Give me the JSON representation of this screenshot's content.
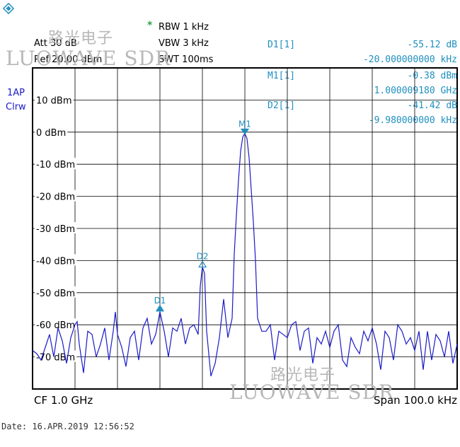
{
  "header": {
    "star": "*",
    "att": "Att 30 dB",
    "ref": "Ref 20.00 dBm",
    "rbw": "RBW 1 kHz",
    "vbw": "VBW 3 kHz",
    "swt": "SWT 100ms"
  },
  "trace_mode": {
    "line1": "1AP",
    "line2": "Clrw"
  },
  "markers": {
    "d1": {
      "label": "D1[1]",
      "value": "-55.12 dB",
      "offset": "-20.000000000 kHz"
    },
    "m1": {
      "label": "M1[1]",
      "value": "-0.38 dBm",
      "freq": "1.000009180 GHz"
    },
    "d2": {
      "label": "D2[1]",
      "value": "-41.42 dB",
      "offset": "-9.980000000 kHz"
    }
  },
  "footer": {
    "cf": "CF 1.0 GHz",
    "span": "Span 100.0 kHz",
    "date": "Date: 16.APR.2019  12:56:52"
  },
  "watermark": {
    "cn": "路光电子",
    "en": "LUOWAVE SDR"
  },
  "colors": {
    "trace": "#1a1ac8",
    "marker": "#1f8fbf",
    "grid": "#000000"
  },
  "chart_data": {
    "type": "line",
    "x_unit": "kHz offset from CF",
    "xlim": [
      -50,
      50
    ],
    "ylim": [
      -80,
      20
    ],
    "y_ticks": [
      {
        "value": 10,
        "label": "10 dBm"
      },
      {
        "value": 0,
        "label": "0 dBm"
      },
      {
        "value": -10,
        "label": "-10 dBm"
      },
      {
        "value": -20,
        "label": "-20 dBm"
      },
      {
        "value": -30,
        "label": "-30 dBm"
      },
      {
        "value": -40,
        "label": "-40 dBm"
      },
      {
        "value": -50,
        "label": "-50 dBm"
      },
      {
        "value": -60,
        "label": "-60 dBm"
      },
      {
        "value": -70,
        "label": "-70 dBm"
      }
    ],
    "grid": true,
    "marker_points": [
      {
        "name": "M1",
        "x": 0,
        "y": -0.38
      },
      {
        "name": "D2",
        "x": -9.98,
        "y": -41.8
      },
      {
        "name": "D1",
        "x": -20,
        "y": -55.5
      }
    ],
    "series": [
      {
        "x": [
          -50,
          -49,
          -48,
          -47,
          -46,
          -45,
          -44,
          -43,
          -42,
          -41,
          -40,
          -39.5,
          -39,
          -38,
          -37,
          -36,
          -35,
          -34,
          -33,
          -32,
          -31,
          -30.5,
          -30,
          -29,
          -28,
          -27,
          -26,
          -25,
          -24,
          -23,
          -22,
          -21,
          -20,
          -19,
          -18,
          -17,
          -16,
          -15,
          -14,
          -13,
          -12,
          -11,
          -10.5,
          -10,
          -9.5,
          -9,
          -8,
          -7,
          -6,
          -5,
          -4,
          -3,
          -2.5,
          -2,
          -1.5,
          -1,
          -0.5,
          0,
          0.5,
          1,
          1.5,
          2,
          2.5,
          3,
          4,
          5,
          6,
          7,
          8,
          9,
          10,
          11,
          12,
          13,
          14,
          15,
          16,
          17,
          18,
          19,
          20,
          21,
          22,
          23,
          24,
          25,
          26,
          27,
          28,
          29,
          30,
          31,
          32,
          33,
          34,
          35,
          36,
          37,
          38,
          39,
          40,
          41,
          42,
          43,
          44,
          45,
          46,
          47,
          48,
          49,
          50
        ],
        "y": [
          -68,
          -69,
          -71,
          -67,
          -63,
          -70,
          -61,
          -65,
          -72,
          -64,
          -60,
          -59,
          -66,
          -75,
          -62,
          -63,
          -70,
          -66,
          -61,
          -71,
          -62,
          -56,
          -63,
          -67,
          -73,
          -64,
          -62,
          -71,
          -61,
          -58,
          -66,
          -63,
          -56,
          -62,
          -70,
          -61,
          -62,
          -58,
          -66,
          -61,
          -60,
          -63,
          -48,
          -42,
          -44,
          -62,
          -76,
          -72,
          -64,
          -52,
          -64,
          -58,
          -38,
          -26,
          -15,
          -6,
          -1.5,
          -0.4,
          -2,
          -8,
          -18,
          -28,
          -40,
          -58,
          -62,
          -62,
          -60,
          -71,
          -62,
          -63,
          -64,
          -60,
          -59,
          -68,
          -62,
          -61,
          -72,
          -64,
          -66,
          -62,
          -67,
          -62,
          -60,
          -71,
          -73,
          -64,
          -67,
          -69,
          -62,
          -65,
          -61,
          -66,
          -74,
          -62,
          -64,
          -71,
          -60,
          -62,
          -66,
          -64,
          -68,
          -62,
          -74,
          -62,
          -71,
          -63,
          -65,
          -70,
          -62,
          -72,
          -66
        ]
      }
    ]
  }
}
